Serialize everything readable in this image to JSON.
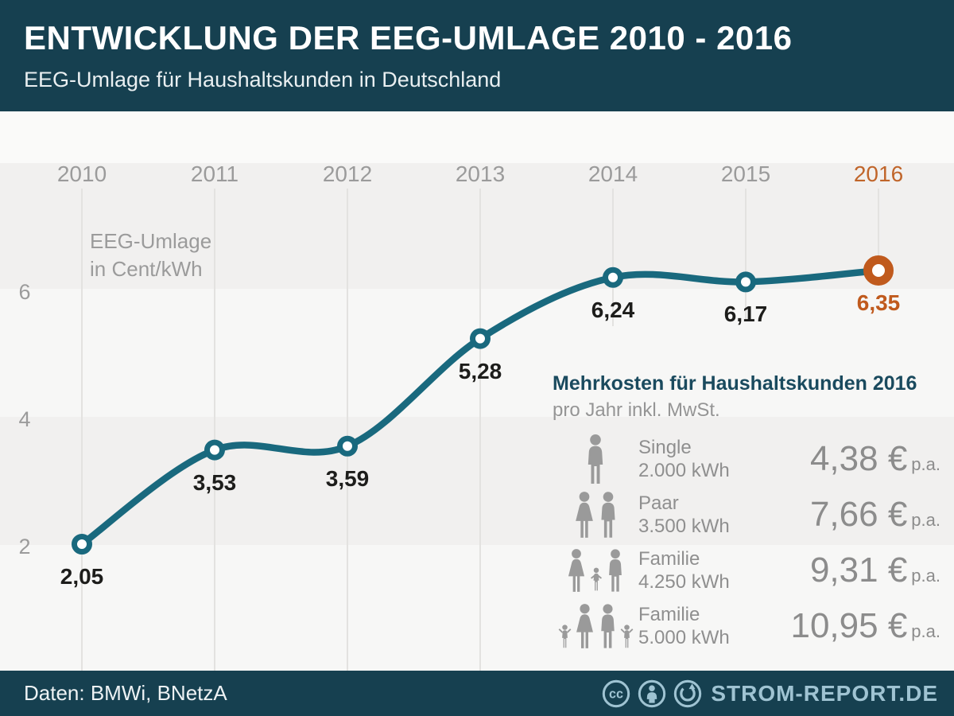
{
  "header": {
    "title": "ENTWICKLUNG DER EEG-UMLAGE 2010 - 2016",
    "subtitle": "EEG-Umlage für Haushaltskunden in Deutschland"
  },
  "chart_data": {
    "type": "line",
    "title": "ENTWICKLUNG DER EEG-UMLAGE 2010 - 2016",
    "subtitle": "EEG-Umlage für Haushaltskunden in Deutschland",
    "categories": [
      "2010",
      "2011",
      "2012",
      "2013",
      "2014",
      "2015",
      "2016"
    ],
    "values": [
      2.05,
      3.53,
      3.59,
      5.28,
      6.24,
      6.17,
      6.35
    ],
    "value_labels": [
      "2,05",
      "3,53",
      "3,59",
      "5,28",
      "6,24",
      "6,17",
      "6,35"
    ],
    "ylabel_line1": "EEG-Umlage",
    "ylabel_line2": "in Cent/kWh",
    "yticks": [
      2,
      4,
      6
    ],
    "ylim": [
      1.1,
      7.3
    ],
    "grid": "vertical-year-gridlines",
    "legend": "none",
    "highlight_index": 6,
    "line_color": "#19697e",
    "highlight_color": "#c05a1d",
    "label_color": "#1d1d1b",
    "axis_color": "#9b9b9b"
  },
  "panel": {
    "title": "Mehrkosten für Haushaltskunden 2016",
    "subtitle": "pro Jahr inkl. MwSt.",
    "rows": [
      {
        "icon": "single-person-icon",
        "label": "Single",
        "consumption": "2.000 kWh",
        "value": "4,38 €",
        "suffix": "p.a."
      },
      {
        "icon": "couple-icon",
        "label": "Paar",
        "consumption": "3.500 kWh",
        "value": "7,66 €",
        "suffix": "p.a."
      },
      {
        "icon": "family-one-child-icon",
        "label": "Familie",
        "consumption": "4.250 kWh",
        "value": "9,31 €",
        "suffix": "p.a."
      },
      {
        "icon": "family-two-children-icon",
        "label": "Familie",
        "consumption": "5.000 kWh",
        "value": "10,95 €",
        "suffix": "p.a."
      }
    ]
  },
  "footer": {
    "source": "Daten: BMWi, BNetzA",
    "license_icons": [
      "cc-icon",
      "cc-by-icon",
      "cc-sa-icon"
    ],
    "brand": "STROM-REPORT.DE"
  },
  "colors": {
    "header_bg": "#164050",
    "accent_teal": "#19697e",
    "accent_orange": "#c05a1d",
    "panel_title": "#1a4a5e",
    "muted_text": "#9b9b9b",
    "band_dark": "#f1f0ef",
    "band_light": "#f7f7f6",
    "footer_brand": "#9fc3d2"
  }
}
